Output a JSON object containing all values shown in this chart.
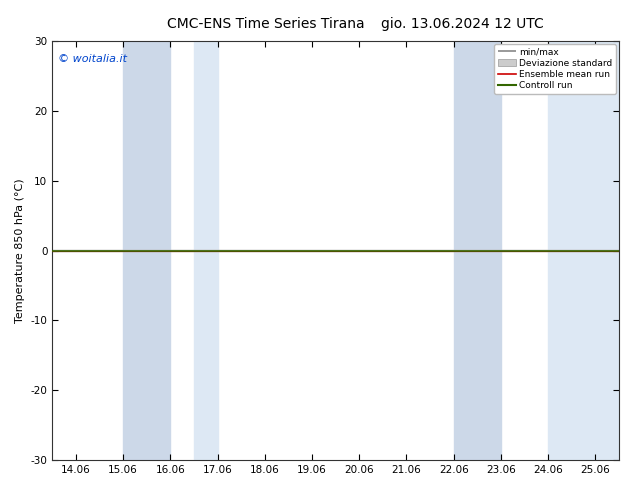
{
  "title_left": "CMC-ENS Time Series Tirana",
  "title_right": "gio. 13.06.2024 12 UTC",
  "ylabel": "Temperature 850 hPa (°C)",
  "ylim": [
    -30,
    30
  ],
  "yticks": [
    -30,
    -20,
    -10,
    0,
    10,
    20,
    30
  ],
  "xtick_labels": [
    "14.06",
    "15.06",
    "16.06",
    "17.06",
    "18.06",
    "19.06",
    "20.06",
    "21.06",
    "22.06",
    "23.06",
    "24.06",
    "25.06"
  ],
  "xtick_positions": [
    0,
    1,
    2,
    3,
    4,
    5,
    6,
    7,
    8,
    9,
    10,
    11
  ],
  "blue_bands": [
    [
      1,
      2
    ],
    [
      2.5,
      3
    ],
    [
      8,
      9
    ],
    [
      10,
      11.5
    ]
  ],
  "band_color_dark": "#cce0f0",
  "band_color_light": "#ddeef8",
  "flat_line_y": 0.0,
  "line_color_ensemble": "#cc0000",
  "line_color_control": "#336600",
  "watermark": "© woitalia.it",
  "legend_entries": [
    "min/max",
    "Deviazione standard",
    "Ensemble mean run",
    "Controll run"
  ],
  "legend_minmax_color": "#888888",
  "legend_std_color": "#cccccc",
  "background_color": "#ffffff",
  "plot_bg_color": "#ffffff",
  "title_fontsize": 10,
  "tick_fontsize": 7.5,
  "ylabel_fontsize": 8
}
